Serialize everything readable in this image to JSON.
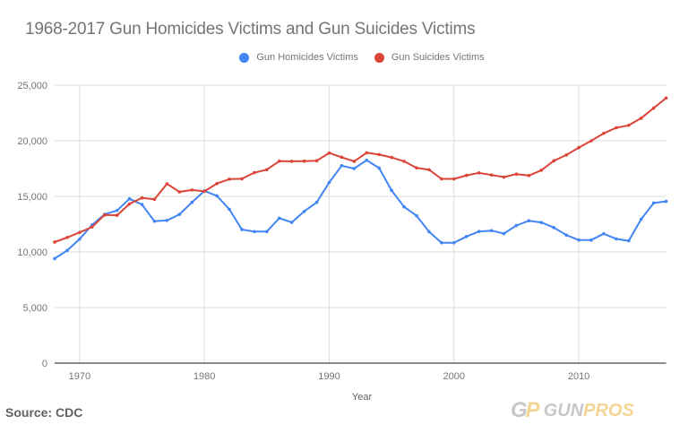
{
  "title": "1968-2017 Gun Homicides Victims and Gun Suicides Victims",
  "legend": [
    {
      "label": "Gun Homicides Victims",
      "color": "#4285F4"
    },
    {
      "label": "Gun Suicides Victims",
      "color": "#DB4437"
    }
  ],
  "source": "Source: CDC",
  "logo": {
    "mark_g": "G",
    "mark_p": "P",
    "text_gun": "GUN",
    "text_pros": "PROS"
  },
  "chart_data": {
    "type": "line",
    "title": "1968-2017 Gun Homicides Victims and Gun Suicides Victims",
    "xlabel": "Year",
    "ylabel": "",
    "x": [
      1968,
      1969,
      1970,
      1971,
      1972,
      1973,
      1974,
      1975,
      1976,
      1977,
      1978,
      1979,
      1980,
      1981,
      1982,
      1983,
      1984,
      1985,
      1986,
      1987,
      1988,
      1989,
      1990,
      1991,
      1992,
      1993,
      1994,
      1995,
      1996,
      1997,
      1998,
      1999,
      2000,
      2001,
      2002,
      2003,
      2004,
      2005,
      2006,
      2007,
      2008,
      2009,
      2010,
      2011,
      2012,
      2013,
      2014,
      2015,
      2016,
      2017
    ],
    "xticks": [
      1970,
      1980,
      1990,
      2000,
      2010
    ],
    "yticks": [
      0,
      5000,
      10000,
      15000,
      20000,
      25000
    ],
    "ytick_labels": [
      "0",
      "5,000",
      "10,000",
      "15,000",
      "20,000",
      "25,000"
    ],
    "xlim": [
      1968,
      2017
    ],
    "ylim": [
      0,
      25000
    ],
    "grid": true,
    "legend_position": "top",
    "series": [
      {
        "name": "Gun Homicides Victims",
        "color": "#4285F4",
        "values": [
          9400,
          10130,
          11160,
          12430,
          13380,
          13730,
          14780,
          14270,
          12760,
          12840,
          13380,
          14460,
          15490,
          15050,
          13840,
          12020,
          11830,
          11830,
          13040,
          12660,
          13650,
          14460,
          16250,
          17760,
          17500,
          18250,
          17550,
          15530,
          14060,
          13260,
          11820,
          10830,
          10830,
          11390,
          11840,
          11920,
          11650,
          12380,
          12810,
          12650,
          12190,
          11520,
          11070,
          11070,
          11640,
          11180,
          11000,
          12940,
          14400,
          14550
        ]
      },
      {
        "name": "Gun Suicides Victims",
        "color": "#DB4437",
        "values": [
          10890,
          11300,
          11760,
          12240,
          13320,
          13300,
          14320,
          14860,
          14730,
          16130,
          15400,
          15570,
          15450,
          16150,
          16550,
          16580,
          17130,
          17400,
          18170,
          18150,
          18170,
          18200,
          18900,
          18520,
          18150,
          18920,
          18760,
          18500,
          18150,
          17560,
          17400,
          16570,
          16570,
          16890,
          17110,
          16920,
          16730,
          17000,
          16870,
          17350,
          18200,
          18720,
          19390,
          20000,
          20670,
          21170,
          21390,
          22030,
          22940,
          23850
        ]
      }
    ]
  }
}
